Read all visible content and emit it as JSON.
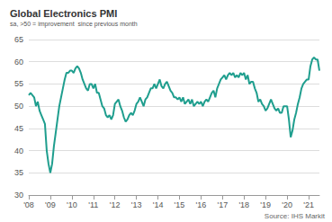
{
  "chart_data": {
    "type": "line",
    "title": "Global Electronics PMI",
    "subtitle": "sa, >50 = improvement  since previous month",
    "annotations": [
      "Source: IHS Markit"
    ],
    "color": "#1f9e8e",
    "categories": [
      "'08",
      null,
      null,
      null,
      null,
      null,
      null,
      null,
      null,
      null,
      null,
      null,
      "'09",
      null,
      null,
      null,
      null,
      null,
      null,
      null,
      null,
      null,
      null,
      null,
      "'10",
      null,
      null,
      null,
      null,
      null,
      null,
      null,
      null,
      null,
      null,
      null,
      "'11",
      null,
      null,
      null,
      null,
      null,
      null,
      null,
      null,
      null,
      null,
      null,
      "'12",
      null,
      null,
      null,
      null,
      null,
      null,
      null,
      null,
      null,
      null,
      null,
      "'13",
      null,
      null,
      null,
      null,
      null,
      null,
      null,
      null,
      null,
      null,
      null,
      "'14",
      null,
      null,
      null,
      null,
      null,
      null,
      null,
      null,
      null,
      null,
      null,
      "'15",
      null,
      null,
      null,
      null,
      null,
      null,
      null,
      null,
      null,
      null,
      null,
      "'16",
      null,
      null,
      null,
      null,
      null,
      null,
      null,
      null,
      null,
      null,
      null,
      "'17",
      null,
      null,
      null,
      null,
      null,
      null,
      null,
      null,
      null,
      null,
      null,
      "'18",
      null,
      null,
      null,
      null,
      null,
      null,
      null,
      null,
      null,
      null,
      null,
      "'19",
      null,
      null,
      null,
      null,
      null,
      null,
      null,
      null,
      null,
      null,
      null,
      "'20",
      null,
      null,
      null,
      null,
      null,
      null,
      null,
      null,
      null,
      null,
      null,
      "'21",
      null,
      null,
      null,
      null,
      null,
      null
    ],
    "values": [
      52.5,
      53,
      52.5,
      52,
      50,
      51,
      49,
      48,
      47,
      46,
      40,
      37,
      35,
      37,
      41,
      44,
      47,
      50,
      52,
      54,
      56,
      57.5,
      57.5,
      58,
      58,
      57.5,
      58.5,
      59,
      58.5,
      57.5,
      56,
      55,
      54,
      53.5,
      55,
      55,
      54,
      55,
      53,
      53,
      51.5,
      50,
      49.5,
      48,
      47.5,
      48,
      47,
      48,
      50.5,
      51,
      51.5,
      50,
      49,
      47.5,
      46.5,
      47,
      48,
      48.5,
      48,
      49,
      50.5,
      51,
      52,
      51,
      50,
      51.5,
      52,
      53,
      54,
      54,
      55,
      54,
      55,
      56,
      54.5,
      54,
      55,
      55.5,
      54.5,
      53.5,
      53,
      52,
      52,
      51.5,
      52,
      51,
      52,
      50.5,
      51,
      51.5,
      50.5,
      51.5,
      50,
      50.5,
      51,
      50.5,
      51,
      50,
      51,
      51.5,
      51,
      52,
      53,
      53.5,
      52,
      54,
      55,
      56,
      56.5,
      57,
      56,
      57,
      57.5,
      57,
      57.5,
      56.5,
      57,
      56.5,
      57.5,
      57,
      57.5,
      56,
      57,
      55,
      55.5,
      55.5,
      54,
      53,
      51,
      51.5,
      50.5,
      50,
      49,
      49.5,
      50.5,
      51.5,
      50.5,
      49.5,
      49,
      49.5,
      48.5,
      48.5,
      50,
      50,
      50,
      47,
      43,
      44.5,
      47,
      48.5,
      50.5,
      52,
      54,
      55,
      55.5,
      56,
      56,
      59,
      60.5,
      61,
      60.5,
      60.5,
      58
    ],
    "ylim": [
      30,
      65
    ],
    "yticks": [
      30,
      35,
      40,
      45,
      50,
      55,
      60,
      65
    ],
    "grid": true
  }
}
